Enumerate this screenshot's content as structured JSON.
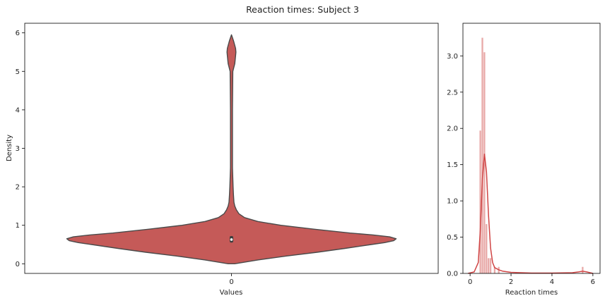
{
  "figure": {
    "title": "Reaction times: Subject 3"
  },
  "colors": {
    "violin_fill": "#c55a58",
    "violin_edge": "#4a4a4a",
    "hist_bar": "#e8a9a8",
    "kde_line": "#d04545",
    "axis": "#000000"
  },
  "chart_data": [
    {
      "type": "violin",
      "xlabel": "Values",
      "ylabel": "Density",
      "categories": [
        "0"
      ],
      "ylim": [
        -0.25,
        6.25
      ],
      "yticks": [
        0,
        1,
        2,
        3,
        4,
        5,
        6
      ],
      "grid": false,
      "distribution": {
        "y": [
          0.0,
          0.1,
          0.2,
          0.3,
          0.4,
          0.5,
          0.55,
          0.6,
          0.65,
          0.7,
          0.75,
          0.8,
          0.9,
          1.0,
          1.1,
          1.2,
          1.3,
          1.4,
          1.5,
          1.6,
          1.8,
          2.0,
          2.5,
          3.0,
          4.0,
          5.0,
          5.2,
          5.4,
          5.5,
          5.6,
          5.8,
          5.95
        ],
        "half_width_fraction": [
          0.02,
          0.16,
          0.33,
          0.52,
          0.69,
          0.85,
          0.93,
          0.985,
          1.0,
          0.96,
          0.86,
          0.72,
          0.5,
          0.3,
          0.16,
          0.08,
          0.045,
          0.03,
          0.02,
          0.015,
          0.012,
          0.01,
          0.006,
          0.006,
          0.006,
          0.008,
          0.02,
          0.025,
          0.027,
          0.025,
          0.012,
          0.0
        ]
      },
      "box": {
        "q1": 0.55,
        "median": 0.63,
        "q3": 0.72
      }
    },
    {
      "type": "histogram",
      "xlabel": "Reaction times",
      "ylabel": "",
      "xlim": [
        -0.35,
        6.35
      ],
      "ylim": [
        0,
        3.45
      ],
      "xticks": [
        0,
        2,
        4,
        6
      ],
      "yticks": [
        0.0,
        0.5,
        1.0,
        1.5,
        2.0,
        2.5,
        3.0
      ],
      "grid": false,
      "bins": [
        {
          "x0": 0.45,
          "x1": 0.55,
          "density": 1.97
        },
        {
          "x0": 0.55,
          "x1": 0.65,
          "density": 3.25
        },
        {
          "x0": 0.65,
          "x1": 0.75,
          "density": 3.05
        },
        {
          "x0": 0.75,
          "x1": 0.85,
          "density": 0.68
        },
        {
          "x0": 0.85,
          "x1": 0.95,
          "density": 0.21
        },
        {
          "x0": 0.95,
          "x1": 1.05,
          "density": 0.21
        },
        {
          "x0": 1.15,
          "x1": 1.25,
          "density": 0.09
        },
        {
          "x0": 1.35,
          "x1": 1.45,
          "density": 0.09
        },
        {
          "x0": 5.45,
          "x1": 5.55,
          "density": 0.09
        }
      ],
      "kde": {
        "x": [
          -0.1,
          0.2,
          0.4,
          0.5,
          0.6,
          0.7,
          0.8,
          0.9,
          1.0,
          1.1,
          1.2,
          1.4,
          1.6,
          2.0,
          3.0,
          4.0,
          5.0,
          5.3,
          5.5,
          5.7,
          6.0
        ],
        "y": [
          0.0,
          0.02,
          0.15,
          0.6,
          1.3,
          1.65,
          1.4,
          0.8,
          0.35,
          0.15,
          0.08,
          0.05,
          0.03,
          0.015,
          0.005,
          0.005,
          0.01,
          0.02,
          0.03,
          0.02,
          0.0
        ]
      }
    }
  ]
}
